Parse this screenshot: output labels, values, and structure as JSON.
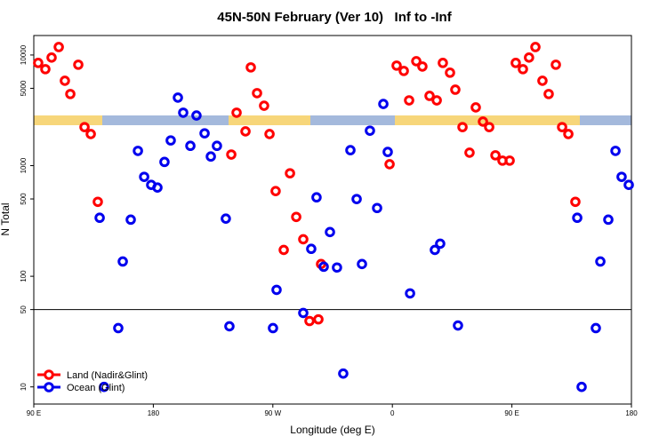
{
  "chart_data": {
    "type": "scatter",
    "title": "45N-50N February (Ver 10)   Inf to -Inf",
    "x_label": "Longitude (deg E)",
    "y_label": "N Total",
    "xlim": [
      90,
      540
    ],
    "xticks": [
      {
        "value": 90,
        "label": "90 E"
      },
      {
        "value": 180,
        "label": "180"
      },
      {
        "value": 270,
        "label": "90 W"
      },
      {
        "value": 360,
        "label": "0"
      },
      {
        "value": 450,
        "label": "90 E"
      },
      {
        "value": 540,
        "label": "180"
      }
    ],
    "ylim": [
      7,
      15000
    ],
    "yticks": [
      10,
      50,
      100,
      500,
      1000,
      5000,
      10000
    ],
    "y_log": true,
    "hline": 50,
    "legend": "bottom-left",
    "series": [
      {
        "name": "Land (Nadir&Glint)",
        "color": "#ff0000",
        "x": [
          93.3,
          98.7,
          103.4,
          108.8,
          113.4,
          117.5,
          123.5,
          128.2,
          132.9,
          138.2,
          238.7,
          242.7,
          249.4,
          253.4,
          258.1,
          263.4,
          267.5,
          272.1,
          278.2,
          282.9,
          287.6,
          292.9,
          297.6,
          304.3,
          306.3,
          357.9,
          363.2,
          368.6,
          372.6,
          378.0,
          382.6,
          388.0,
          393.4,
          398.0,
          403.4,
          407.4,
          412.8,
          418.1,
          422.8,
          428.2,
          432.9,
          437.6,
          442.9,
          448.3,
          452.9,
          458.3,
          462.9,
          467.7,
          473.0,
          477.7,
          483.1,
          487.8,
          492.5,
          497.8
        ],
        "values": [
          8480,
          7450,
          9480,
          11800,
          5850,
          4440,
          8170,
          2230,
          1930,
          471,
          1260,
          3010,
          2040,
          7730,
          4520,
          3480,
          1930,
          589,
          173,
          853,
          344,
          216,
          39.4,
          40.8,
          129,
          1030,
          8020,
          7180,
          3890,
          8790,
          7870,
          4270,
          3890,
          8480,
          6920,
          4860,
          2230,
          1310,
          3360,
          2500,
          2230,
          1240,
          1110,
          1110,
          8480,
          7450,
          9480,
          11800,
          5850,
          4440,
          8170,
          2230,
          1930,
          471
        ]
      },
      {
        "name": "Ocean (Glint)",
        "color": "#0000ee",
        "x": [
          139.6,
          142.9,
          153.6,
          157.0,
          163.0,
          168.4,
          173.1,
          178.4,
          183.1,
          188.4,
          193.1,
          198.5,
          202.5,
          207.9,
          212.5,
          218.6,
          223.3,
          227.9,
          234.6,
          237.3,
          270.1,
          272.8,
          292.9,
          298.9,
          302.9,
          308.3,
          313.0,
          318.3,
          323.0,
          328.4,
          333.1,
          337.1,
          343.1,
          348.5,
          353.2,
          356.5,
          373.3,
          392.0,
          396.0,
          409.4,
          499.2,
          502.5,
          513.2,
          516.6,
          522.6,
          528.0,
          532.6,
          538.0
        ],
        "values": [
          338,
          10,
          34,
          136,
          325,
          1360,
          792,
          670,
          634,
          1080,
          1690,
          4120,
          3010,
          1510,
          2840,
          1960,
          1210,
          1510,
          332,
          35.3,
          34,
          75.4,
          46.6,
          177,
          517,
          122,
          251,
          120,
          13.2,
          1380,
          499,
          129,
          2070,
          414,
          3610,
          1330,
          70,
          173,
          197,
          35.9,
          338,
          10,
          34,
          136,
          325,
          1360,
          792,
          670
        ]
      }
    ]
  }
}
